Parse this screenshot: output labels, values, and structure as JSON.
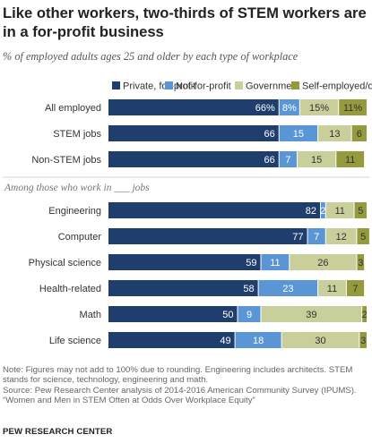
{
  "title": "Like other workers, two-thirds of STEM workers are in a for-profit business",
  "subtitle": "% of employed adults ages 25 and older by each type of workplace",
  "group_label": "Among those who work in ___ jobs",
  "notes": {
    "line1": "Note: Figures may not add to 100% due to rounding. Engineering includes architects. STEM",
    "line2": "stands for science, technology, engineering and math.",
    "line3": "Source: Pew Research Center analysis of 2014-2016 American Community Survey (IPUMS).",
    "line4": "“Women and Men in STEM Often at Odds Over Workplace Equity”"
  },
  "source_org": "PEW RESEARCH CENTER",
  "chart_data": {
    "type": "bar",
    "orientation": "horizontal",
    "stacked": true,
    "legend_position": "top",
    "xlim": [
      0,
      100
    ],
    "categories": [
      "All employed",
      "STEM jobs",
      "Non-STEM jobs",
      "Engineering",
      "Computer",
      "Physical science",
      "Health-related",
      "Math",
      "Life science"
    ],
    "value_labels": [
      [
        "66%",
        "8%",
        "15%",
        "11%"
      ],
      [
        "66",
        "15",
        "13",
        "6"
      ],
      [
        "66",
        "7",
        "15",
        "11"
      ],
      [
        "82",
        "2",
        "11",
        "5"
      ],
      [
        "77",
        "7",
        "12",
        "5"
      ],
      [
        "59",
        "11",
        "26",
        "3"
      ],
      [
        "58",
        "23",
        "11",
        "7"
      ],
      [
        "50",
        "9",
        "39",
        "2"
      ],
      [
        "49",
        "18",
        "30",
        "3"
      ]
    ],
    "series": [
      {
        "name": "Private, for-profit",
        "color": "#1f3e6e",
        "label_color": "#ffffff",
        "values": [
          66,
          66,
          66,
          82,
          77,
          59,
          58,
          50,
          49
        ]
      },
      {
        "name": "Not-for-profit",
        "color": "#5a96d6",
        "label_color": "#ffffff",
        "values": [
          8,
          15,
          7,
          2,
          7,
          11,
          23,
          9,
          18
        ]
      },
      {
        "name": "Government",
        "color": "#c9cf9b",
        "label_color": "#333333",
        "values": [
          15,
          13,
          15,
          11,
          12,
          26,
          11,
          39,
          30
        ]
      },
      {
        "name": "Self-employed/other",
        "color": "#959b3d",
        "label_color": "#333333",
        "values": [
          11,
          6,
          11,
          5,
          5,
          3,
          7,
          2,
          3
        ]
      }
    ]
  }
}
